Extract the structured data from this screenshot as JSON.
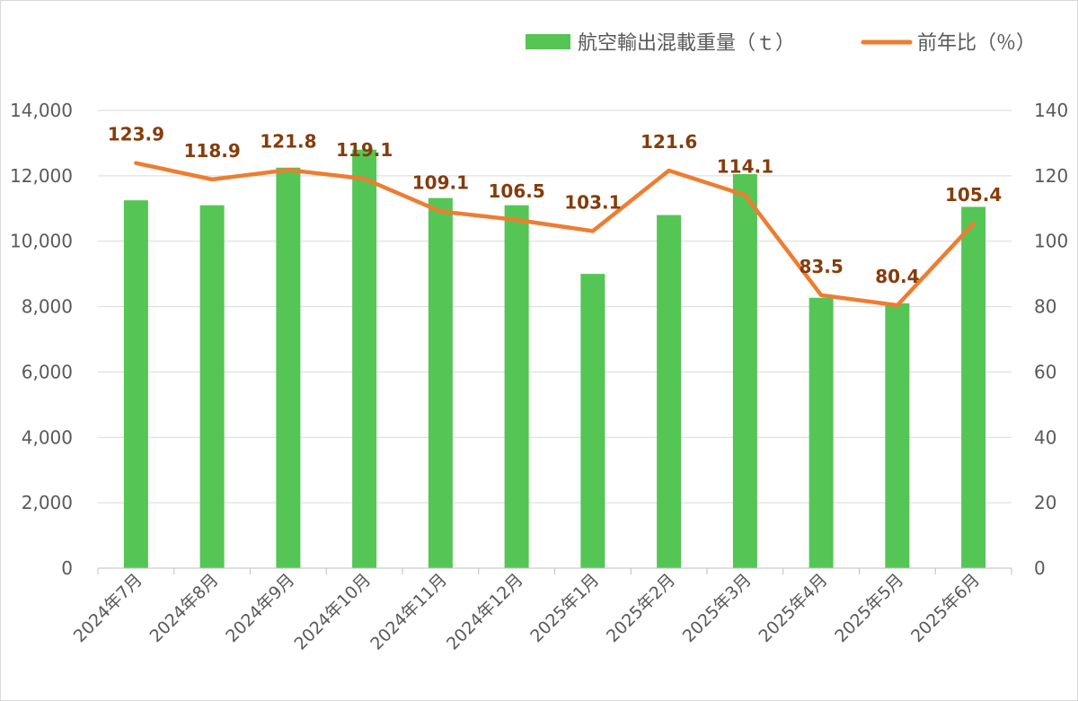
{
  "chart_data": {
    "type": "bar",
    "categories": [
      "2024年7月",
      "2024年8月",
      "2024年9月",
      "2024年10月",
      "2024年11月",
      "2024年12月",
      "2025年1月",
      "2025年2月",
      "2025年3月",
      "2025年4月",
      "2025年5月",
      "2025年6月"
    ],
    "series": [
      {
        "name": "航空輸出混載重量（ｔ）",
        "type": "bar",
        "axis": "left",
        "color": "#55c555",
        "values": [
          11250,
          11100,
          12250,
          12800,
          11320,
          11100,
          9000,
          10800,
          12050,
          8270,
          8100,
          11050
        ]
      },
      {
        "name": "前年比（％）",
        "type": "line",
        "axis": "right",
        "color": "#ed7d31",
        "values": [
          123.9,
          118.9,
          121.8,
          119.1,
          109.1,
          106.5,
          103.1,
          121.6,
          114.1,
          83.5,
          80.4,
          105.4
        ],
        "labels": [
          "123.9",
          "118.9",
          "121.8",
          "119.1",
          "109.1",
          "106.5",
          "103.1",
          "121.6",
          "114.1",
          "83.5",
          "80.4",
          "105.4"
        ]
      }
    ],
    "y_left": {
      "min": 0,
      "max": 14000,
      "ticks": [
        "0",
        "2,000",
        "4,000",
        "6,000",
        "8,000",
        "10,000",
        "12,000",
        "14,000"
      ]
    },
    "y_right": {
      "min": 0,
      "max": 140,
      "ticks": [
        "0",
        "20",
        "40",
        "60",
        "80",
        "100",
        "120",
        "140"
      ]
    },
    "grid": true,
    "legend_position": "top-right",
    "title": "",
    "xlabel": "",
    "ylabel": ""
  }
}
